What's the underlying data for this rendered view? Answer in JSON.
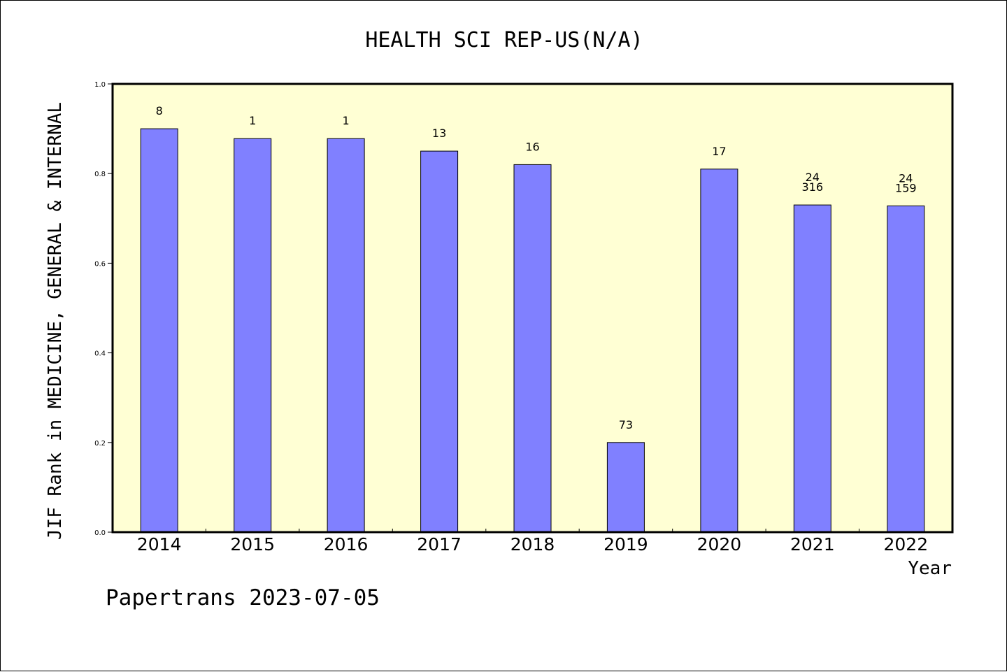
{
  "chart_data": {
    "type": "bar",
    "title": "HEALTH SCI REP-US(N/A)",
    "xlabel": "Year",
    "ylabel": "JIF Rank in MEDICINE, GENERAL & INTERNAL",
    "categories": [
      "2014",
      "2015",
      "2016",
      "2017",
      "2018",
      "2019",
      "2020",
      "2021",
      "2022"
    ],
    "values": [
      0.9,
      0.878,
      0.878,
      0.85,
      0.82,
      0.2,
      0.81,
      0.73,
      0.728
    ],
    "bar_labels": [
      [
        "8"
      ],
      [
        "1"
      ],
      [
        "1"
      ],
      [
        "13"
      ],
      [
        "16"
      ],
      [
        "73"
      ],
      [
        "17"
      ],
      [
        "24",
        "316"
      ],
      [
        "24",
        "159"
      ]
    ],
    "ylim": [
      0,
      1.0
    ],
    "yticks": [
      "0.0",
      "0.2",
      "0.4",
      "0.6",
      "0.8",
      "1.0"
    ],
    "grid": false,
    "bar_color": "#8080ff",
    "plot_background": "#ffffd4"
  },
  "footer": {
    "text": "Papertrans 2023-07-05"
  }
}
